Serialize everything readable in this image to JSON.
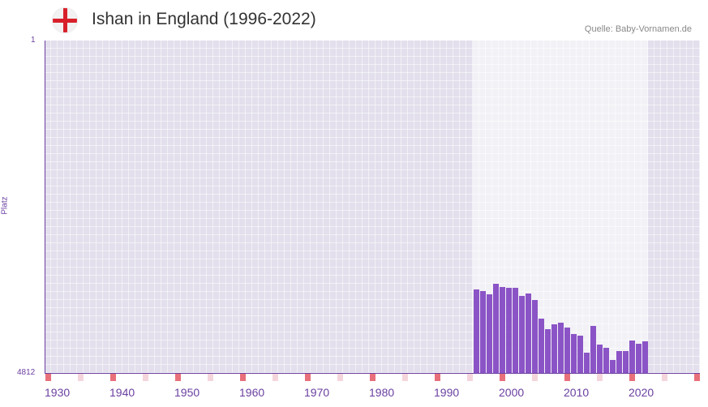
{
  "header": {
    "title": "Ishan in England (1996-2022)",
    "source": "Quelle: Baby-Vornamen.de",
    "flag_icon": "england-flag-icon"
  },
  "chart_data": {
    "type": "bar",
    "title": "Ishan in England (1996-2022)",
    "ylabel": "Platz",
    "ylim": [
      4812,
      1
    ],
    "y_ticks": [
      "1",
      "4812"
    ],
    "xlim": [
      1930,
      2030
    ],
    "x_ticks": [
      "1930",
      "1940",
      "1950",
      "1960",
      "1970",
      "1980",
      "1990",
      "2000",
      "2010",
      "2020"
    ],
    "highlight_range": [
      1996,
      2022
    ],
    "x": [
      1996,
      1997,
      1998,
      1999,
      2000,
      2001,
      2002,
      2003,
      2004,
      2005,
      2006,
      2007,
      2008,
      2009,
      2010,
      2011,
      2012,
      2013,
      2014,
      2015,
      2016,
      2017,
      2018,
      2019,
      2020,
      2021,
      2022
    ],
    "values": [
      3600,
      3627,
      3674,
      3521,
      3568,
      3580,
      3580,
      3697,
      3662,
      3756,
      4026,
      4178,
      4108,
      4085,
      4155,
      4249,
      4272,
      4519,
      4131,
      4401,
      4448,
      4624,
      4495,
      4495,
      4343,
      4390,
      4354
    ],
    "colors": {
      "bar": "#8b54c6",
      "axis": "#6a3fa0",
      "decade_mark": "#e8707a",
      "half_decade_mark": "#f5d5dc"
    }
  }
}
